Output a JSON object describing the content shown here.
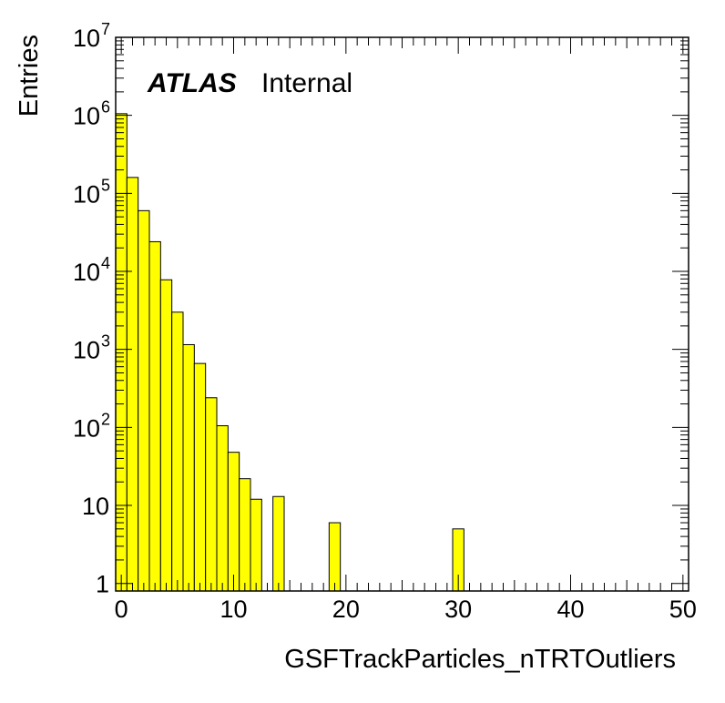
{
  "chart_data": {
    "type": "histogram",
    "title": "",
    "annotation": {
      "bold": "ATLAS",
      "normal": "Internal"
    },
    "xlabel": "GSFTrackParticles_nTRTOutliers",
    "ylabel": "Entries",
    "xlim": [
      -0.5,
      50.5
    ],
    "ylim": [
      0.8,
      10000000
    ],
    "y_scale": "log",
    "bin_width": 1,
    "bins": [
      {
        "x": 0,
        "y": 1050000
      },
      {
        "x": 1,
        "y": 160000
      },
      {
        "x": 2,
        "y": 60000
      },
      {
        "x": 3,
        "y": 24000
      },
      {
        "x": 4,
        "y": 7800
      },
      {
        "x": 5,
        "y": 3000
      },
      {
        "x": 6,
        "y": 1150
      },
      {
        "x": 7,
        "y": 660
      },
      {
        "x": 8,
        "y": 240
      },
      {
        "x": 9,
        "y": 105
      },
      {
        "x": 10,
        "y": 48
      },
      {
        "x": 11,
        "y": 22
      },
      {
        "x": 12,
        "y": 12
      },
      {
        "x": 13,
        "y": 0
      },
      {
        "x": 14,
        "y": 13
      },
      {
        "x": 15,
        "y": 0
      },
      {
        "x": 16,
        "y": 0
      },
      {
        "x": 17,
        "y": 0
      },
      {
        "x": 18,
        "y": 0
      },
      {
        "x": 19,
        "y": 6
      },
      {
        "x": 20,
        "y": 0
      },
      {
        "x": 21,
        "y": 0
      },
      {
        "x": 22,
        "y": 0
      },
      {
        "x": 23,
        "y": 0
      },
      {
        "x": 24,
        "y": 0
      },
      {
        "x": 25,
        "y": 0
      },
      {
        "x": 26,
        "y": 0
      },
      {
        "x": 27,
        "y": 0
      },
      {
        "x": 28,
        "y": 0
      },
      {
        "x": 29,
        "y": 0
      },
      {
        "x": 30,
        "y": 5
      }
    ],
    "x_ticks": [
      "0",
      "10",
      "20",
      "30",
      "40",
      "50"
    ],
    "y_ticks": [
      {
        "base": "1",
        "exp": ""
      },
      {
        "base": "10",
        "exp": ""
      },
      {
        "base": "10",
        "exp": "2"
      },
      {
        "base": "10",
        "exp": "3"
      },
      {
        "base": "10",
        "exp": "4"
      },
      {
        "base": "10",
        "exp": "5"
      },
      {
        "base": "10",
        "exp": "6"
      },
      {
        "base": "10",
        "exp": "7"
      }
    ],
    "fill_color": "#ffff00",
    "line_color": "#000000",
    "grid": false
  }
}
